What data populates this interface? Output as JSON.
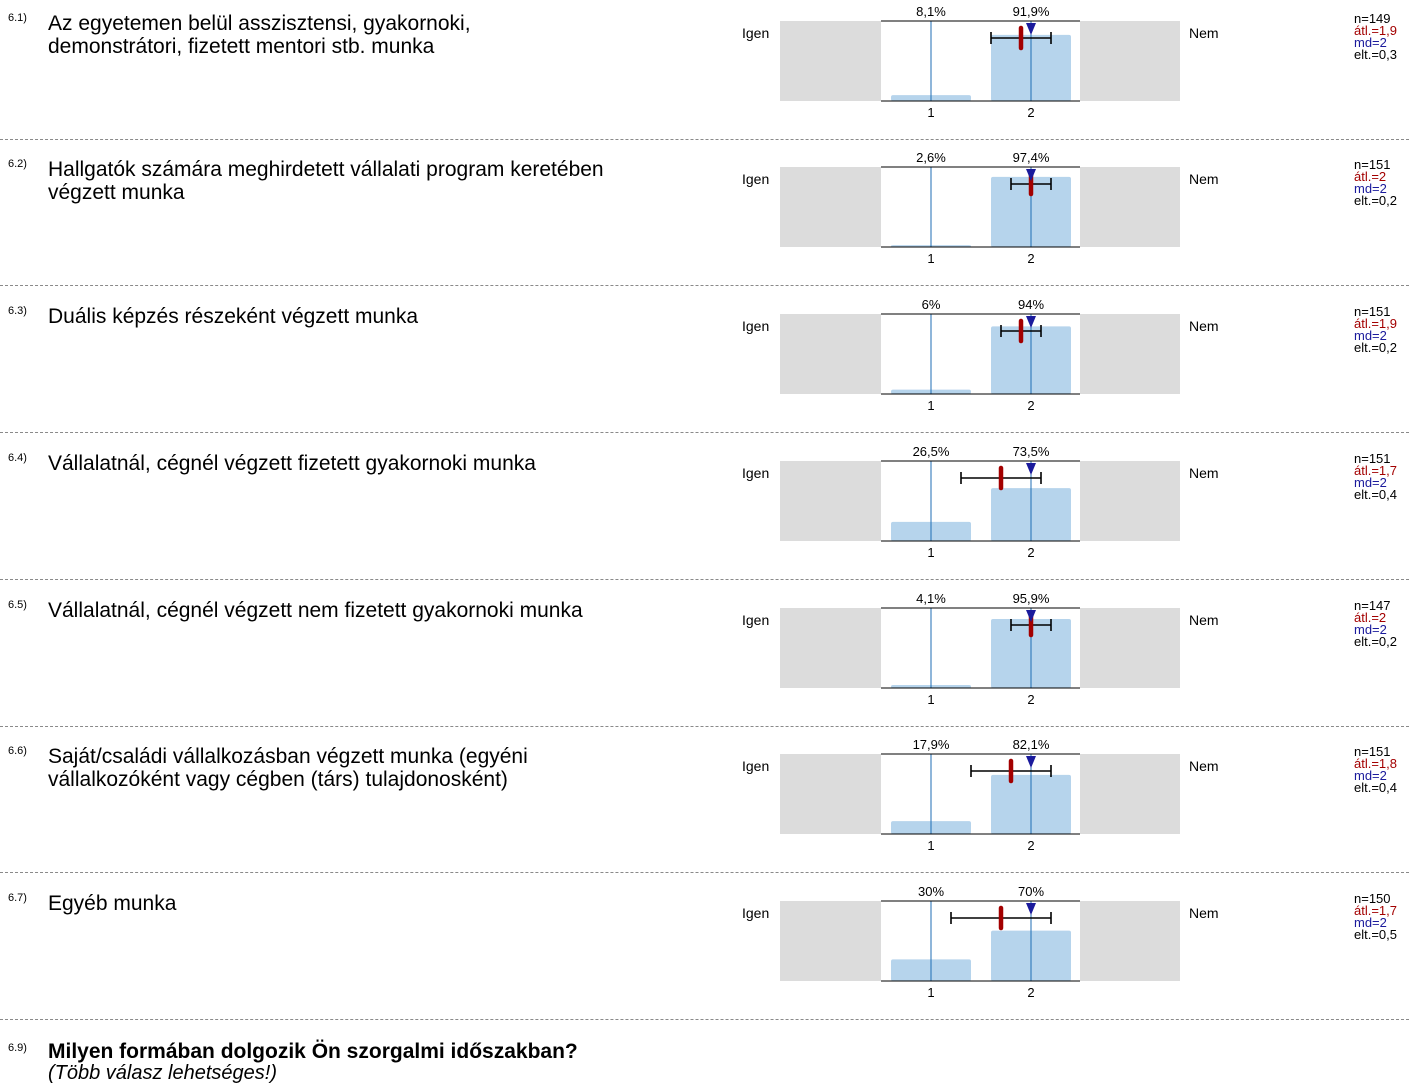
{
  "scale_labels": {
    "left": "Igen",
    "right": "Nem"
  },
  "colors": {
    "bar": "#b6d4ec",
    "side": "#dcdcdc",
    "axis": "#000000",
    "center_line": "#1f6eb4",
    "mean_marker": "#a30000",
    "median_marker": "#1a1a9c"
  },
  "chart_data": [
    {
      "type": "bar",
      "id": "6.1",
      "categories": [
        "1",
        "2"
      ],
      "values": [
        8.1,
        91.9
      ],
      "value_labels": [
        "8,1%",
        "91,9%"
      ],
      "ylim": [
        0,
        100
      ],
      "mean": 1.9,
      "median": 2,
      "sd": 0.3
    },
    {
      "type": "bar",
      "id": "6.2",
      "categories": [
        "1",
        "2"
      ],
      "values": [
        2.6,
        97.4
      ],
      "value_labels": [
        "2,6%",
        "97,4%"
      ],
      "ylim": [
        0,
        100
      ],
      "mean": 2.0,
      "median": 2,
      "sd": 0.2
    },
    {
      "type": "bar",
      "id": "6.3",
      "categories": [
        "1",
        "2"
      ],
      "values": [
        6,
        94
      ],
      "value_labels": [
        "6%",
        "94%"
      ],
      "ylim": [
        0,
        100
      ],
      "mean": 1.9,
      "median": 2,
      "sd": 0.2
    },
    {
      "type": "bar",
      "id": "6.4",
      "categories": [
        "1",
        "2"
      ],
      "values": [
        26.5,
        73.5
      ],
      "value_labels": [
        "26,5%",
        "73,5%"
      ],
      "ylim": [
        0,
        100
      ],
      "mean": 1.7,
      "median": 2,
      "sd": 0.4
    },
    {
      "type": "bar",
      "id": "6.5",
      "categories": [
        "1",
        "2"
      ],
      "values": [
        4.1,
        95.9
      ],
      "value_labels": [
        "4,1%",
        "95,9%"
      ],
      "ylim": [
        0,
        100
      ],
      "mean": 2.0,
      "median": 2,
      "sd": 0.2
    },
    {
      "type": "bar",
      "id": "6.6",
      "categories": [
        "1",
        "2"
      ],
      "values": [
        17.9,
        82.1
      ],
      "value_labels": [
        "17,9%",
        "82,1%"
      ],
      "ylim": [
        0,
        100
      ],
      "mean": 1.8,
      "median": 2,
      "sd": 0.4
    },
    {
      "type": "bar",
      "id": "6.7",
      "categories": [
        "1",
        "2"
      ],
      "values": [
        30,
        70
      ],
      "value_labels": [
        "30%",
        "70%"
      ],
      "ylim": [
        0,
        100
      ],
      "mean": 1.7,
      "median": 2,
      "sd": 0.5
    }
  ],
  "questions": [
    {
      "num": "6.1)",
      "text": "Az egyetemen belül asszisztensi, gyakornoki, demonstrátori, fizetett mentori stb. munka",
      "n": "n=149",
      "mean": "átl.=1,9",
      "md": "md=2",
      "sd": "elt.=0,3"
    },
    {
      "num": "6.2)",
      "text": "Hallgatók számára meghirdetett vállalati program keretében végzett munka",
      "n": "n=151",
      "mean": "átl.=2",
      "md": "md=2",
      "sd": "elt.=0,2"
    },
    {
      "num": "6.3)",
      "text": "Duális képzés részeként végzett munka",
      "n": "n=151",
      "mean": "átl.=1,9",
      "md": "md=2",
      "sd": "elt.=0,2"
    },
    {
      "num": "6.4)",
      "text": "Vállalatnál, cégnél végzett fizetett gyakornoki munka",
      "n": "n=151",
      "mean": "átl.=1,7",
      "md": "md=2",
      "sd": "elt.=0,4"
    },
    {
      "num": "6.5)",
      "text": "Vállalatnál, cégnél végzett nem fizetett gyakornoki munka",
      "n": "n=147",
      "mean": "átl.=2",
      "md": "md=2",
      "sd": "elt.=0,2"
    },
    {
      "num": "6.6)",
      "text": "Saját/családi vállalkozásban végzett munka (egyéni vállalkozóként vagy cégben (társ) tulajdonosként)",
      "n": "n=151",
      "mean": "átl.=1,8",
      "md": "md=2",
      "sd": "elt.=0,4"
    },
    {
      "num": "6.7)",
      "text": "Egyéb munka",
      "n": "n=150",
      "mean": "átl.=1,7",
      "md": "md=2",
      "sd": "elt.=0,5"
    }
  ],
  "footer": {
    "num": "6.9)",
    "title": "Milyen formában dolgozik Ön szorgalmi időszakban?",
    "subtitle": "(Több válasz lehetséges!)"
  }
}
